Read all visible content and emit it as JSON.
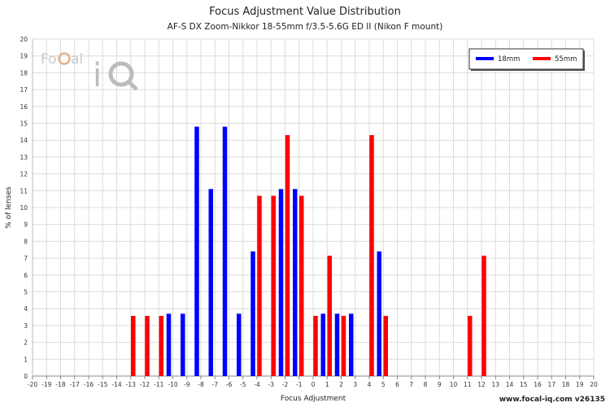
{
  "chart_data": {
    "type": "bar",
    "title": "Focus Adjustment Value Distribution",
    "subtitle": "AF-S DX Zoom-Nikkor 18-55mm f/3.5-5.6G ED II (Nikon F mount)",
    "xlabel": "Focus Adjustment",
    "ylabel": "% of lenses",
    "xlim": [
      -20,
      20
    ],
    "ylim": [
      0,
      20
    ],
    "x_ticks": [
      -20,
      -19,
      -18,
      -17,
      -16,
      -15,
      -14,
      -13,
      -12,
      -11,
      -10,
      -9,
      -8,
      -7,
      -6,
      -5,
      -4,
      -3,
      -2,
      -1,
      0,
      1,
      2,
      3,
      4,
      5,
      6,
      7,
      8,
      9,
      10,
      11,
      12,
      13,
      14,
      15,
      16,
      17,
      18,
      19,
      20
    ],
    "y_ticks": [
      0,
      1,
      2,
      3,
      4,
      5,
      6,
      7,
      8,
      9,
      10,
      11,
      12,
      13,
      14,
      15,
      16,
      17,
      18,
      19,
      20
    ],
    "grid": true,
    "legend_position": "top-right",
    "series": [
      {
        "name": "18mm",
        "color": "#0000ff",
        "points": [
          {
            "x": -10,
            "y": 3.7
          },
          {
            "x": -9,
            "y": 3.7
          },
          {
            "x": -8,
            "y": 14.8
          },
          {
            "x": -7,
            "y": 11.1
          },
          {
            "x": -6,
            "y": 14.8
          },
          {
            "x": -5,
            "y": 3.7
          },
          {
            "x": -4,
            "y": 7.4
          },
          {
            "x": -2,
            "y": 11.1
          },
          {
            "x": -1,
            "y": 11.1
          },
          {
            "x": 1,
            "y": 3.7
          },
          {
            "x": 2,
            "y": 3.7
          },
          {
            "x": 3,
            "y": 3.7
          },
          {
            "x": 5,
            "y": 7.4
          }
        ]
      },
      {
        "name": "55mm",
        "color": "#ff0000",
        "points": [
          {
            "x": -13,
            "y": 3.57
          },
          {
            "x": -12,
            "y": 3.57
          },
          {
            "x": -11,
            "y": 3.57
          },
          {
            "x": -4,
            "y": 10.7
          },
          {
            "x": -3,
            "y": 10.7
          },
          {
            "x": -2,
            "y": 14.3
          },
          {
            "x": -1,
            "y": 10.7
          },
          {
            "x": 0,
            "y": 3.57
          },
          {
            "x": 1,
            "y": 7.14
          },
          {
            "x": 2,
            "y": 3.57
          },
          {
            "x": 4,
            "y": 14.3
          },
          {
            "x": 5,
            "y": 3.57
          },
          {
            "x": 11,
            "y": 3.57
          },
          {
            "x": 12,
            "y": 7.14
          }
        ]
      }
    ]
  },
  "logo_text": "FoCal iQ",
  "watermark": "www.focal-iq.com  v26135"
}
